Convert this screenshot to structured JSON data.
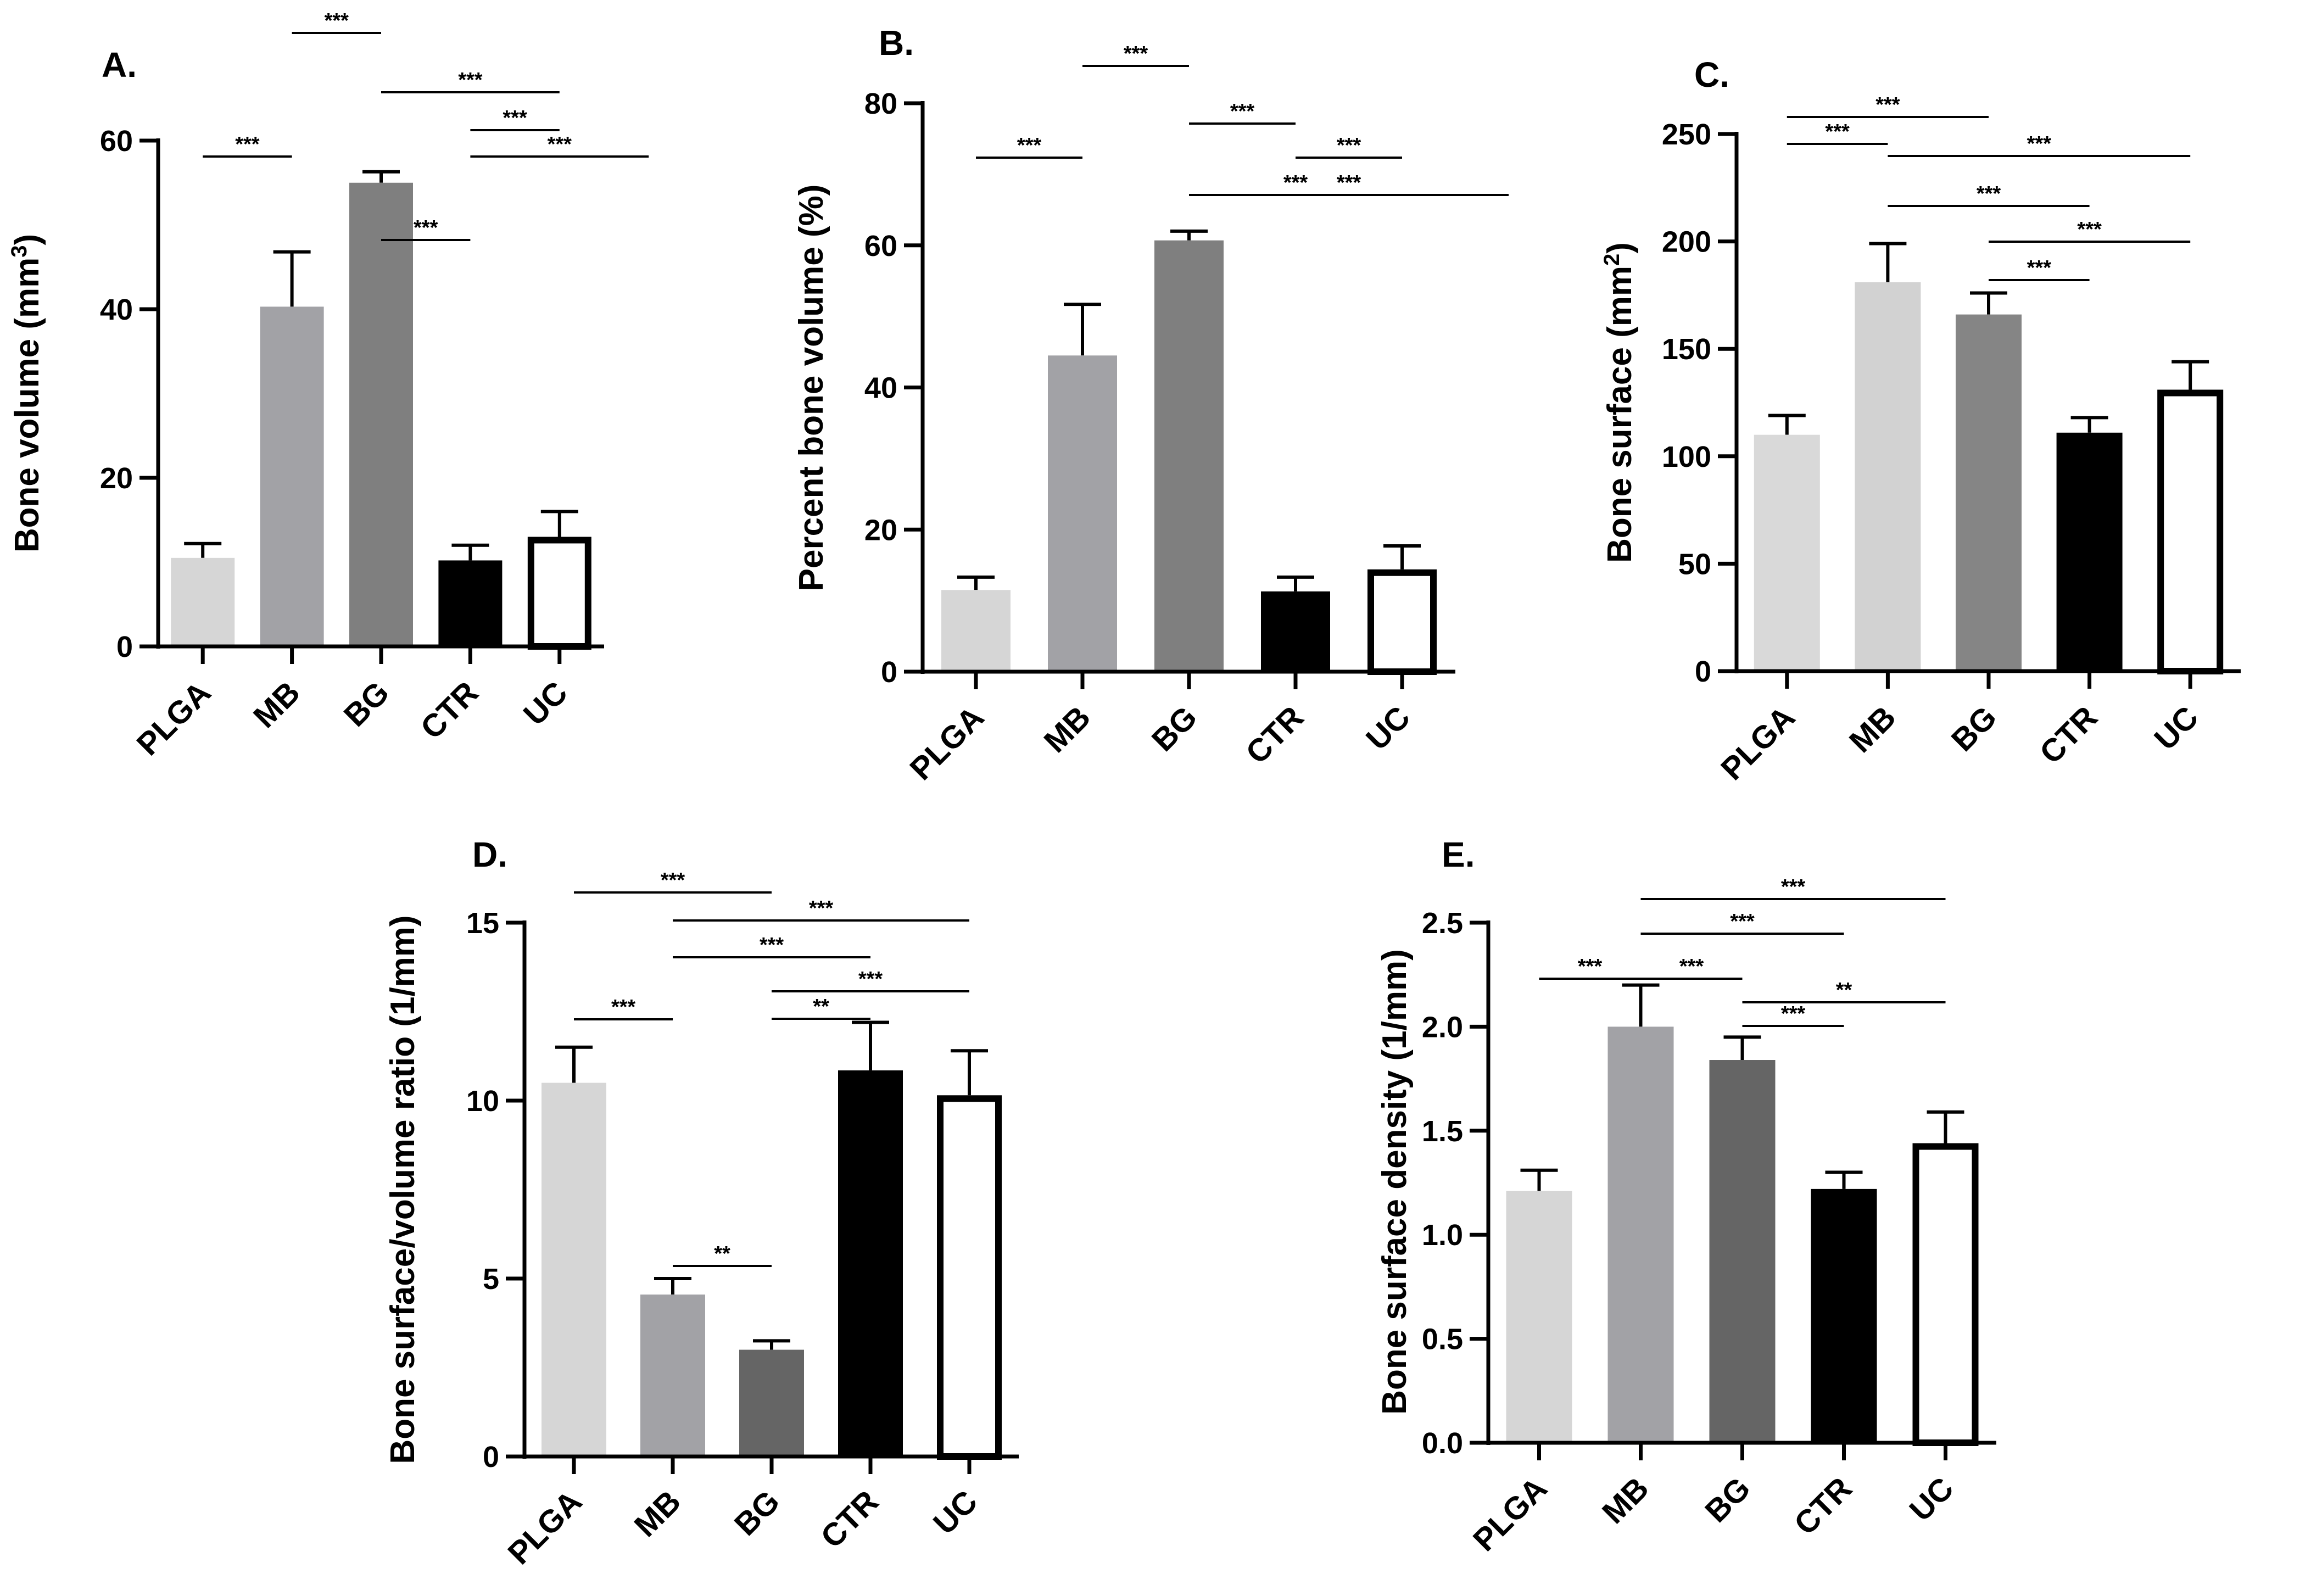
{
  "chart_data": [
    {
      "type": "bar",
      "panel_label": "A.",
      "title": "",
      "xlabel": "",
      "ylabel": "Bone volume (mm³)",
      "categories": [
        "PLGA",
        "MB",
        "BG",
        "CTR",
        "UC"
      ],
      "values": [
        10.5,
        40.3,
        55.0,
        10.2,
        13.0
      ],
      "errors": [
        1.7,
        6.5,
        1.3,
        1.8,
        3.0
      ],
      "colors": [
        "#d6d6d6",
        "#a2a2a6",
        "#7f7f7f",
        "#000000",
        "#ffffff"
      ],
      "ylim": [
        0,
        60
      ],
      "yticks": [
        0,
        20,
        40,
        60
      ],
      "significance": [
        {
          "from": 1,
          "to": 2,
          "label": "***"
        },
        {
          "from": 2,
          "to": 4,
          "label": "***"
        },
        {
          "from": 3,
          "to": 4,
          "label": "***"
        },
        {
          "from": 0,
          "to": 1,
          "label": "***"
        },
        {
          "from": 3,
          "to": 5,
          "label": "***"
        },
        {
          "from": 2,
          "to": 3,
          "label": "***"
        }
      ]
    },
    {
      "type": "bar",
      "panel_label": "B.",
      "title": "",
      "xlabel": "",
      "ylabel": "Percent bone volume (%)",
      "categories": [
        "PLGA",
        "MB",
        "BG",
        "CTR",
        "UC"
      ],
      "values": [
        11.5,
        44.5,
        60.7,
        11.3,
        14.4
      ],
      "errors": [
        1.8,
        7.2,
        1.3,
        2.0,
        3.3
      ],
      "colors": [
        "#d6d6d6",
        "#a2a2a6",
        "#7f7f7f",
        "#000000",
        "#ffffff"
      ],
      "ylim": [
        0,
        80
      ],
      "yticks": [
        0,
        20,
        40,
        60,
        80
      ],
      "significance": [
        {
          "from": 1,
          "to": 2,
          "label": "***"
        },
        {
          "from": 2,
          "to": 3,
          "label": "***"
        },
        {
          "from": 3,
          "to": 4,
          "label": "***"
        },
        {
          "from": 0,
          "to": 1,
          "label": "***"
        },
        {
          "from": 2,
          "to": 4,
          "label": "***"
        },
        {
          "from": 2,
          "to": 5,
          "label": "***"
        }
      ]
    },
    {
      "type": "bar",
      "panel_label": "C.",
      "title": "",
      "xlabel": "",
      "ylabel": "Bone surface (mm²)",
      "categories": [
        "PLGA",
        "MB",
        "BG",
        "CTR",
        "UC"
      ],
      "values": [
        110,
        181,
        166,
        111,
        131
      ],
      "errors": [
        9,
        18,
        10,
        7,
        13
      ],
      "colors": [
        "#d9d9d9",
        "#d2d2d2",
        "#858585",
        "#000000",
        "#ffffff"
      ],
      "ylim": [
        0,
        250
      ],
      "yticks": [
        0,
        50,
        100,
        150,
        200,
        250
      ],
      "significance": [
        {
          "from": 0,
          "to": 2,
          "label": "***"
        },
        {
          "from": 0,
          "to": 1,
          "label": "***"
        },
        {
          "from": 1,
          "to": 4,
          "label": "***"
        },
        {
          "from": 1,
          "to": 3,
          "label": "***"
        },
        {
          "from": 2,
          "to": 4,
          "label": "***"
        },
        {
          "from": 2,
          "to": 3,
          "label": "***"
        }
      ]
    },
    {
      "type": "bar",
      "panel_label": "D.",
      "title": "",
      "xlabel": "",
      "ylabel": "Bone surface/volume ratio (1/mm)",
      "categories": [
        "PLGA",
        "MB",
        "BG",
        "CTR",
        "UC"
      ],
      "values": [
        10.5,
        4.55,
        3.0,
        10.85,
        10.15
      ],
      "errors": [
        1.0,
        0.45,
        0.25,
        1.35,
        1.25
      ],
      "colors": [
        "#d6d6d6",
        "#a2a2a6",
        "#656565",
        "#000000",
        "#ffffff"
      ],
      "ylim": [
        0,
        15
      ],
      "yticks": [
        0,
        5,
        10,
        15
      ],
      "significance": [
        {
          "from": 0,
          "to": 2,
          "label": "***"
        },
        {
          "from": 0,
          "to": 1,
          "label": "***"
        },
        {
          "from": 1,
          "to": 4,
          "label": "***"
        },
        {
          "from": 1,
          "to": 3,
          "label": "***"
        },
        {
          "from": 2,
          "to": 4,
          "label": "***"
        },
        {
          "from": 2,
          "to": 3,
          "label": "**"
        },
        {
          "from": 1,
          "to": 2,
          "label": "**"
        }
      ]
    },
    {
      "type": "bar",
      "panel_label": "E.",
      "title": "",
      "xlabel": "",
      "ylabel": "Bone surface density (1/mm)",
      "categories": [
        "PLGA",
        "MB",
        "BG",
        "CTR",
        "UC"
      ],
      "values": [
        1.21,
        2.0,
        1.84,
        1.22,
        1.44
      ],
      "errors": [
        0.1,
        0.2,
        0.11,
        0.08,
        0.15
      ],
      "colors": [
        "#d6d6d6",
        "#a2a2a6",
        "#656565",
        "#000000",
        "#ffffff"
      ],
      "ylim": [
        0,
        2.5
      ],
      "yticks": [
        0.0,
        0.5,
        1.0,
        1.5,
        2.0,
        2.5
      ],
      "significance": [
        {
          "from": 0,
          "to": 1,
          "label": "***"
        },
        {
          "from": 1,
          "to": 2,
          "label": "***"
        },
        {
          "from": 1,
          "to": 3,
          "label": "***"
        },
        {
          "from": 1,
          "to": 4,
          "label": "***"
        },
        {
          "from": 2,
          "to": 3,
          "label": "***"
        },
        {
          "from": 2,
          "to": 4,
          "label": "**"
        }
      ]
    }
  ]
}
